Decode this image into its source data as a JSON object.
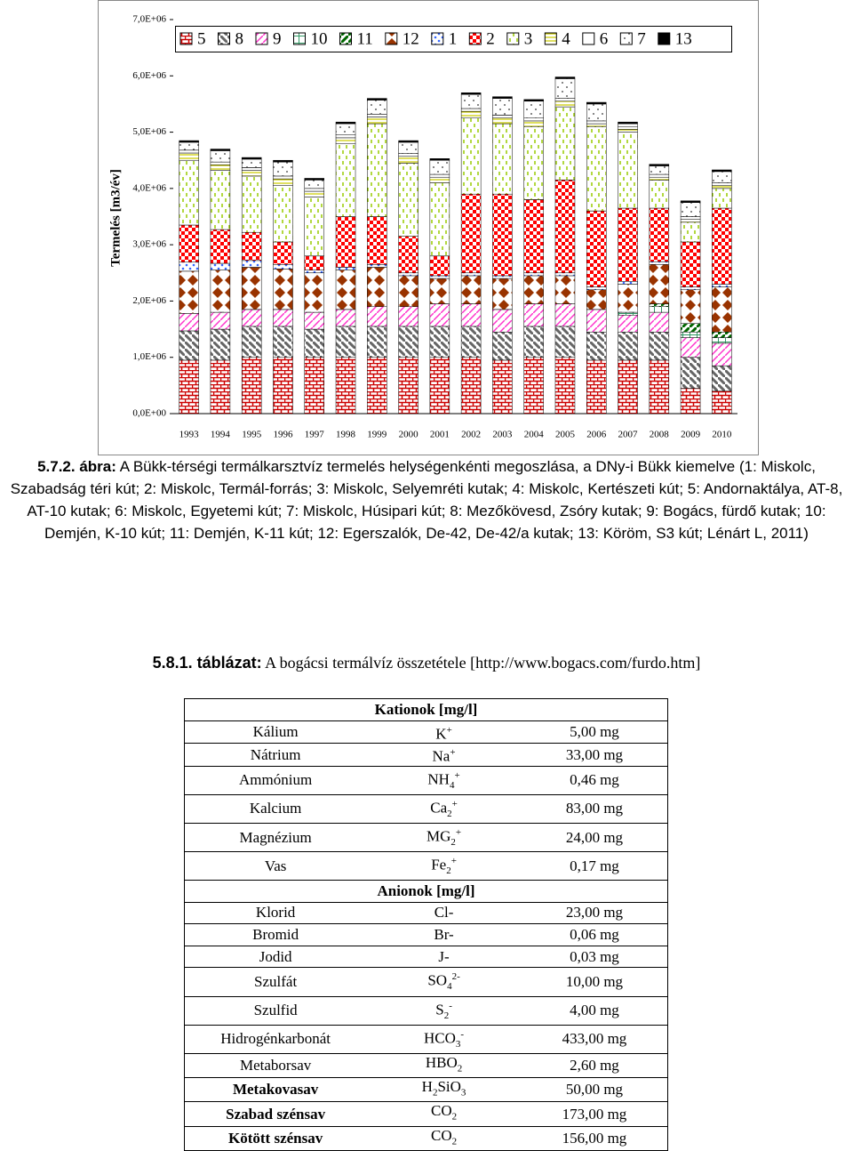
{
  "chart_data": {
    "type": "bar",
    "stacked": true,
    "ylabel": "Termelés [m3/év]",
    "categories": [
      "1993",
      "1994",
      "1995",
      "1996",
      "1997",
      "1998",
      "1999",
      "2000",
      "2001",
      "2002",
      "2003",
      "2004",
      "2005",
      "2006",
      "2007",
      "2008",
      "2009",
      "2010"
    ],
    "ylim": [
      0,
      7000000
    ],
    "yticks": [
      {
        "value": 0,
        "label": "0,0E+00"
      },
      {
        "value": 1000000,
        "label": "1,0E+06"
      },
      {
        "value": 2000000,
        "label": "2,0E+06"
      },
      {
        "value": 3000000,
        "label": "3,0E+06"
      },
      {
        "value": 4000000,
        "label": "4,0E+06"
      },
      {
        "value": 5000000,
        "label": "5,0E+06"
      },
      {
        "value": 6000000,
        "label": "6,0E+06"
      },
      {
        "value": 7000000,
        "label": "7,0E+06"
      }
    ],
    "series": [
      {
        "name": "5",
        "color": "#cc0000",
        "values": [
          950000,
          950000,
          1000000,
          1000000,
          1000000,
          1000000,
          1000000,
          1000000,
          1000000,
          1000000,
          950000,
          1000000,
          1000000,
          950000,
          950000,
          950000,
          450000,
          400000
        ]
      },
      {
        "name": "8",
        "color": "#666666",
        "values": [
          520000,
          550000,
          550000,
          550000,
          500000,
          550000,
          550000,
          550000,
          550000,
          550000,
          500000,
          550000,
          550000,
          500000,
          500000,
          500000,
          550000,
          450000
        ]
      },
      {
        "name": "9",
        "color": "#ff33cc",
        "values": [
          310000,
          300000,
          300000,
          300000,
          300000,
          300000,
          350000,
          350000,
          400000,
          400000,
          400000,
          400000,
          400000,
          400000,
          300000,
          350000,
          350000,
          400000
        ]
      },
      {
        "name": "10",
        "color": "#339966",
        "values": [
          0,
          0,
          0,
          0,
          0,
          0,
          0,
          0,
          0,
          0,
          0,
          0,
          0,
          0,
          50000,
          100000,
          100000,
          100000
        ]
      },
      {
        "name": "11",
        "color": "#006600",
        "values": [
          0,
          0,
          0,
          0,
          0,
          0,
          0,
          0,
          0,
          0,
          0,
          0,
          0,
          0,
          0,
          50000,
          150000,
          100000
        ]
      },
      {
        "name": "12",
        "color": "#993300",
        "values": [
          750000,
          750000,
          750000,
          720000,
          700000,
          700000,
          700000,
          550000,
          450000,
          500000,
          550000,
          500000,
          500000,
          350000,
          500000,
          700000,
          600000,
          800000
        ]
      },
      {
        "name": "1",
        "color": "#3366ff",
        "values": [
          160000,
          120000,
          120000,
          80000,
          50000,
          50000,
          50000,
          50000,
          50000,
          50000,
          50000,
          50000,
          50000,
          50000,
          50000,
          50000,
          50000,
          50000
        ]
      },
      {
        "name": "2",
        "color": "#ff0000",
        "values": [
          660000,
          600000,
          500000,
          400000,
          250000,
          900000,
          850000,
          650000,
          350000,
          1400000,
          1450000,
          1300000,
          1650000,
          1350000,
          1300000,
          950000,
          800000,
          1350000
        ]
      },
      {
        "name": "3",
        "color": "#99cc00",
        "values": [
          1150000,
          1050000,
          1000000,
          1000000,
          1050000,
          1300000,
          1650000,
          1300000,
          1300000,
          1350000,
          1250000,
          1300000,
          1300000,
          1500000,
          1350000,
          500000,
          350000,
          350000
        ]
      },
      {
        "name": "4",
        "color": "#cccc00",
        "values": [
          130000,
          100000,
          100000,
          120000,
          100000,
          100000,
          120000,
          120000,
          100000,
          120000,
          100000,
          100000,
          100000,
          50000,
          50000,
          50000,
          50000,
          50000
        ]
      },
      {
        "name": "6",
        "color": "#ffffff",
        "values": [
          50000,
          50000,
          50000,
          50000,
          50000,
          50000,
          50000,
          50000,
          50000,
          50000,
          50000,
          50000,
          50000,
          50000,
          50000,
          50000,
          50000,
          50000
        ]
      },
      {
        "name": "7",
        "color": "#333333",
        "values": [
          140000,
          200000,
          150000,
          250000,
          150000,
          200000,
          250000,
          200000,
          250000,
          250000,
          300000,
          300000,
          350000,
          300000,
          50000,
          150000,
          250000,
          200000
        ]
      },
      {
        "name": "13",
        "color": "#000000",
        "values": [
          30000,
          30000,
          30000,
          30000,
          30000,
          30000,
          30000,
          30000,
          30000,
          30000,
          30000,
          30000,
          30000,
          30000,
          30000,
          30000,
          30000,
          30000
        ]
      }
    ]
  },
  "caption": {
    "label": "5.7.2. ábra:",
    "text": "A Bükk-térségi termálkarsztvíz termelés helységenkénti megoszlása, a DNy-i Bükk kiemelve (1: Miskolc, Szabadság téri kút; 2: Miskolc, Termál-forrás; 3: Miskolc, Selyemréti kutak; 4: Miskolc, Kertészeti kút; 5: Andornaktálya, AT-8, AT-10 kutak; 6: Miskolc, Egyetemi kút; 7: Miskolc, Húsipari kút; 8: Mezőkövesd, Zsóry kutak; 9: Bogács,  fürdő kutak; 10: Demjén, K-10 kút; 11: Demjén, K-11 kút; 12: Egerszalók, De-42, De-42/a kutak; 13: Köröm, S3 kút; Lénárt L, 2011)"
  },
  "table": {
    "label": "5.8.1. táblázat:",
    "title": "A bogácsi termálvíz összetétele [http://www.bogacs.com/furdo.htm]",
    "sections": [
      {
        "title": "Kationok [mg/l]",
        "rows": [
          {
            "name": "Kálium",
            "formula": [
              "K",
              {
                "sup": "+"
              }
            ],
            "value": "5,00 mg"
          },
          {
            "name": "Nátrium",
            "formula": [
              "Na",
              {
                "sup": "+"
              }
            ],
            "value": "33,00 mg"
          },
          {
            "name": "Ammónium",
            "formula": [
              "NH",
              {
                "sub": "4"
              },
              {
                "sup": "+"
              }
            ],
            "value": "0,46 mg"
          },
          {
            "name": "Kalcium",
            "formula": [
              "Ca",
              {
                "sub": "2"
              },
              {
                "sup": "+"
              }
            ],
            "value": "83,00 mg"
          },
          {
            "name": "Magnézium",
            "formula": [
              "MG",
              {
                "sub": "2"
              },
              {
                "sup": "+"
              }
            ],
            "value": "24,00 mg"
          },
          {
            "name": "Vas",
            "formula": [
              "Fe",
              {
                "sub": "2"
              },
              {
                "sup": "+"
              }
            ],
            "value": "0,17 mg"
          }
        ]
      },
      {
        "title": "Anionok [mg/l]",
        "rows": [
          {
            "name": "Klorid",
            "formula": [
              "Cl-"
            ],
            "value": "23,00 mg"
          },
          {
            "name": "Bromid",
            "formula": [
              "Br-"
            ],
            "value": "0,06 mg"
          },
          {
            "name": "Jodid",
            "formula": [
              "J-"
            ],
            "value": "0,03 mg"
          },
          {
            "name": "Szulfát",
            "formula": [
              "SO",
              {
                "sub": "4"
              },
              {
                "sup": "2-"
              }
            ],
            "value": "10,00 mg"
          },
          {
            "name": "Szulfid",
            "formula": [
              "S",
              {
                "sub": "2"
              },
              {
                "sup": "-"
              }
            ],
            "value": "4,00 mg"
          },
          {
            "name": "Hidrogénkarbonát",
            "formula": [
              "HCO",
              {
                "sub": "3"
              },
              {
                "sup": "-"
              }
            ],
            "value": "433,00 mg"
          },
          {
            "name": "Metaborsav",
            "formula": [
              "HBO",
              {
                "sub": "2"
              }
            ],
            "value": "2,60 mg"
          },
          {
            "name": "Metakovasav",
            "bold": true,
            "formula": [
              "H",
              {
                "sub": "2"
              },
              "SiO",
              {
                "sub": "3"
              }
            ],
            "value": "50,00 mg"
          },
          {
            "name": "Szabad szénsav",
            "bold": true,
            "formula": [
              "CO",
              {
                "sub": "2"
              }
            ],
            "value": "173,00 mg"
          },
          {
            "name": "Kötött szénsav",
            "bold": true,
            "formula": [
              "CO",
              {
                "sub": "2"
              }
            ],
            "value": "156,00 mg"
          }
        ]
      }
    ]
  }
}
